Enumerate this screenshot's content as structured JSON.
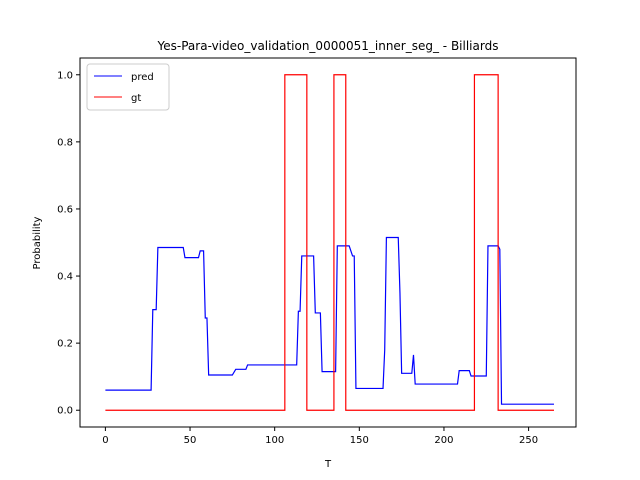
{
  "chart_data": {
    "type": "line",
    "title": "Yes-Para-video_validation_0000051_inner_seg_ - Billiards",
    "xlabel": "T",
    "ylabel": "Probability",
    "xlim": [
      -15,
      278
    ],
    "ylim": [
      -0.05,
      1.05
    ],
    "xticks": [
      0,
      50,
      100,
      150,
      200,
      250
    ],
    "yticks": [
      0.0,
      0.2,
      0.4,
      0.6,
      0.8,
      1.0
    ],
    "xtick_labels": [
      "0",
      "50",
      "100",
      "150",
      "200",
      "250"
    ],
    "ytick_labels": [
      "0.0",
      "0.2",
      "0.4",
      "0.6",
      "0.8",
      "1.0"
    ],
    "grid": false,
    "legend_position": "top-left",
    "series": [
      {
        "name": "pred",
        "color": "#0000ff",
        "points": [
          [
            0,
            0.06
          ],
          [
            27,
            0.06
          ],
          [
            28,
            0.3
          ],
          [
            30,
            0.3
          ],
          [
            31,
            0.485
          ],
          [
            46,
            0.485
          ],
          [
            47,
            0.455
          ],
          [
            55,
            0.455
          ],
          [
            56,
            0.475
          ],
          [
            58,
            0.475
          ],
          [
            59,
            0.275
          ],
          [
            60,
            0.275
          ],
          [
            61,
            0.105
          ],
          [
            75,
            0.105
          ],
          [
            77,
            0.122
          ],
          [
            83,
            0.122
          ],
          [
            84,
            0.135
          ],
          [
            113,
            0.135
          ],
          [
            114,
            0.295
          ],
          [
            115,
            0.295
          ],
          [
            116,
            0.46
          ],
          [
            123,
            0.46
          ],
          [
            124,
            0.29
          ],
          [
            127,
            0.29
          ],
          [
            128,
            0.115
          ],
          [
            136,
            0.115
          ],
          [
            137,
            0.49
          ],
          [
            144,
            0.49
          ],
          [
            146,
            0.46
          ],
          [
            147,
            0.46
          ],
          [
            148,
            0.065
          ],
          [
            164,
            0.065
          ],
          [
            165,
            0.18
          ],
          [
            166,
            0.515
          ],
          [
            173,
            0.515
          ],
          [
            174,
            0.35
          ],
          [
            175,
            0.11
          ],
          [
            181,
            0.11
          ],
          [
            182,
            0.165
          ],
          [
            183,
            0.078
          ],
          [
            208,
            0.078
          ],
          [
            209,
            0.118
          ],
          [
            215,
            0.118
          ],
          [
            216,
            0.102
          ],
          [
            225,
            0.102
          ],
          [
            226,
            0.49
          ],
          [
            232,
            0.49
          ],
          [
            233,
            0.48
          ],
          [
            234,
            0.018
          ],
          [
            265,
            0.018
          ]
        ]
      },
      {
        "name": "gt",
        "color": "#ff0000",
        "points": [
          [
            0,
            0
          ],
          [
            106,
            0
          ],
          [
            106,
            1
          ],
          [
            119,
            1
          ],
          [
            119,
            0
          ],
          [
            135,
            0
          ],
          [
            135,
            1
          ],
          [
            142,
            1
          ],
          [
            142,
            0
          ],
          [
            218,
            0
          ],
          [
            218,
            1
          ],
          [
            232,
            1
          ],
          [
            232,
            0
          ],
          [
            265,
            0
          ]
        ]
      }
    ]
  }
}
